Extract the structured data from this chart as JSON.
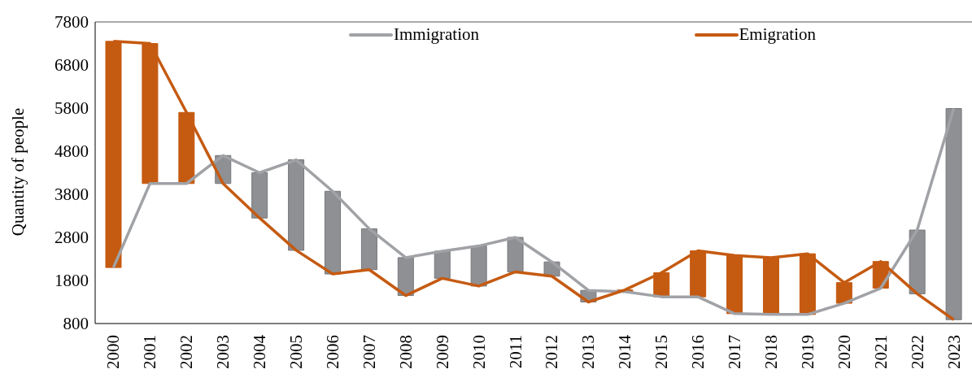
{
  "chart_data": {
    "type": "line",
    "ylabel": "Quantity of people",
    "categories": [
      "2000",
      "2001",
      "2002",
      "2003",
      "2004",
      "2005",
      "2006",
      "2007",
      "2008",
      "2009",
      "2010",
      "2011",
      "2012",
      "2013",
      "2014",
      "2015",
      "2016",
      "2017",
      "2018",
      "2019",
      "2020",
      "2021",
      "2022",
      "2023"
    ],
    "series": [
      {
        "type": "bar",
        "base": [
          7350,
          7300,
          5700,
          4050,
          3250,
          2500,
          1950,
          2050,
          1450,
          1850,
          1670,
          2000,
          1900,
          1300,
          1580,
          1980,
          2490,
          2380,
          2330,
          2420,
          1750,
          2240,
          1490,
          890
        ],
        "values": [
          -5250,
          -3250,
          -1650,
          650,
          1050,
          2100,
          1920,
          950,
          880,
          630,
          930,
          800,
          330,
          270,
          -40,
          -560,
          -1070,
          -1350,
          -1320,
          -1410,
          -480,
          -620,
          1480,
          4900
        ],
        "colors": [
          "#c55a11",
          "#c55a11",
          "#c55a11",
          "#8f9094",
          "#8f9094",
          "#8f9094",
          "#8f9094",
          "#8f9094",
          "#8f9094",
          "#8f9094",
          "#8f9094",
          "#8f9094",
          "#8f9094",
          "#8f9094",
          "#c55a11",
          "#c55a11",
          "#c55a11",
          "#c55a11",
          "#c55a11",
          "#c55a11",
          "#c55a11",
          "#c55a11",
          "#8f9094",
          "#8f9094"
        ]
      },
      {
        "name": "Immigration",
        "color": "#a0a2a6",
        "values": [
          2100,
          4050,
          4050,
          4700,
          4300,
          4600,
          3870,
          3000,
          2330,
          2480,
          2600,
          2800,
          2230,
          1570,
          1540,
          1420,
          1420,
          1030,
          1010,
          1010,
          1270,
          1620,
          2970,
          5790
        ]
      },
      {
        "name": "Emigration",
        "color": "#c55a11",
        "values": [
          7350,
          7300,
          5700,
          4050,
          3250,
          2500,
          1950,
          2050,
          1450,
          1850,
          1670,
          2000,
          1900,
          1300,
          1580,
          1980,
          2490,
          2380,
          2330,
          2420,
          1750,
          2240,
          1490,
          890
        ]
      }
    ],
    "ylim": [
      800,
      7800
    ],
    "yticks": [
      800,
      1800,
      2800,
      3800,
      4800,
      5800,
      6800,
      7800
    ],
    "legend": "top",
    "marker": "none",
    "line_style": "solid"
  }
}
